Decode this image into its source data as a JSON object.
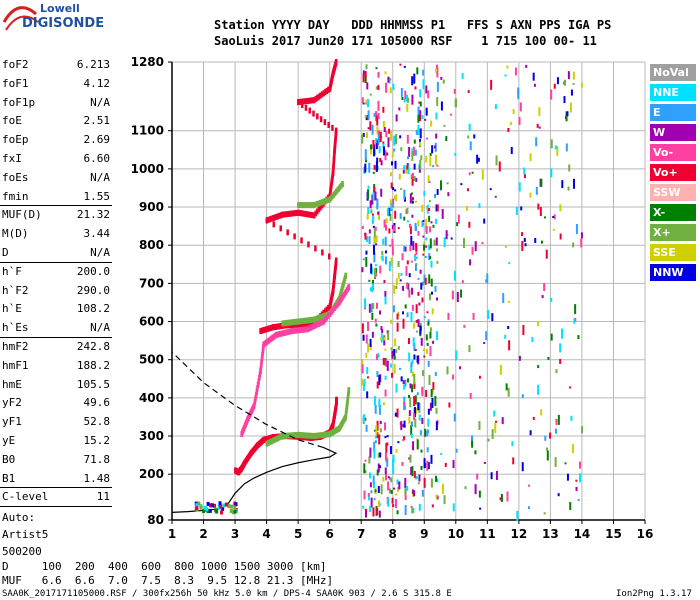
{
  "brand": {
    "line1": "Lowell",
    "line2": "DIGISONDE"
  },
  "header": {
    "row1": "Station YYYY DAY   DDD HHMMSS P1   FFS S AXN PPS IGA PS",
    "row2": "SaoLuis 2017 Jun20 171 105000 RSF    1 715 100 00- 11"
  },
  "params": [
    {
      "label": "foF2",
      "value": "6.213"
    },
    {
      "label": "foF1",
      "value": "4.12"
    },
    {
      "label": "foF1p",
      "value": "N/A"
    },
    {
      "label": "foE",
      "value": "2.51"
    },
    {
      "label": "foEp",
      "value": "2.69"
    },
    {
      "label": "fxI",
      "value": "6.60"
    },
    {
      "label": "foEs",
      "value": "N/A"
    },
    {
      "label": "fmin",
      "value": "1.55"
    },
    {
      "label": "MUF(D)",
      "value": "21.32"
    },
    {
      "label": "M(D)",
      "value": "3.44"
    },
    {
      "label": "D",
      "value": "N/A"
    },
    {
      "label": "h`F",
      "value": "200.0"
    },
    {
      "label": "h`F2",
      "value": "290.0"
    },
    {
      "label": "h`E",
      "value": "108.2"
    },
    {
      "label": "h`Es",
      "value": "N/A"
    },
    {
      "label": "hmF2",
      "value": "242.8"
    },
    {
      "label": "hmF1",
      "value": "188.2"
    },
    {
      "label": "hmE",
      "value": "105.5"
    },
    {
      "label": "yF2",
      "value": "49.6"
    },
    {
      "label": "yF1",
      "value": "52.8"
    },
    {
      "label": "yE",
      "value": "15.2"
    },
    {
      "label": "B0",
      "value": "71.8"
    },
    {
      "label": "B1",
      "value": "1.48"
    },
    {
      "label": "C-level",
      "value": "11"
    }
  ],
  "auto": {
    "line1": "Auto:",
    "line2": "Artist5",
    "line3": "500200"
  },
  "legend": [
    {
      "label": "NoVal",
      "color": "#a0a0a0"
    },
    {
      "label": "NNE",
      "color": "#00e0ff"
    },
    {
      "label": "E",
      "color": "#30a0ff"
    },
    {
      "label": "W",
      "color": "#a000b0"
    },
    {
      "label": "Vo-",
      "color": "#ff40a0"
    },
    {
      "label": "Vo+",
      "color": "#f00030"
    },
    {
      "label": "SSW",
      "color": "#ffb0b0"
    },
    {
      "label": "X-",
      "color": "#008000"
    },
    {
      "label": "X+",
      "color": "#70b040"
    },
    {
      "label": "SSE",
      "color": "#d0d000"
    },
    {
      "label": "NNW",
      "color": "#0000e0"
    }
  ],
  "chart_data": {
    "type": "scatter",
    "title": "",
    "xlabel": "",
    "ylabel": "",
    "xlim": [
      1,
      16
    ],
    "ylim": [
      80,
      1280
    ],
    "x_ticks": [
      1,
      2,
      3,
      4,
      5,
      6,
      7,
      8,
      9,
      10,
      11,
      12,
      13,
      14,
      15,
      16
    ],
    "y_ticks": [
      80,
      200,
      300,
      400,
      500,
      600,
      700,
      800,
      900,
      1000,
      1100,
      1280
    ],
    "grid": true,
    "legend_position": "right",
    "series": [
      {
        "name": "Vo+",
        "color": "#f00030",
        "points": [
          [
            3.0,
            210
          ],
          [
            3.1,
            205
          ],
          [
            3.2,
            215
          ],
          [
            3.3,
            230
          ],
          [
            3.5,
            255
          ],
          [
            3.7,
            275
          ],
          [
            3.9,
            290
          ],
          [
            4.2,
            297
          ],
          [
            4.6,
            300
          ],
          [
            5.0,
            298
          ],
          [
            5.4,
            295
          ],
          [
            5.7,
            298
          ],
          [
            6.0,
            310
          ],
          [
            6.1,
            330
          ],
          [
            6.15,
            355
          ],
          [
            6.2,
            380
          ],
          [
            6.21,
            395
          ],
          [
            3.8,
            575
          ],
          [
            4.2,
            585
          ],
          [
            4.6,
            590
          ],
          [
            5.0,
            592
          ],
          [
            5.5,
            597
          ],
          [
            6.0,
            640
          ],
          [
            6.1,
            680
          ],
          [
            6.15,
            720
          ],
          [
            6.2,
            760
          ],
          [
            4.0,
            865
          ],
          [
            4.5,
            880
          ],
          [
            5.0,
            885
          ],
          [
            5.5,
            878
          ],
          [
            6.0,
            930
          ],
          [
            6.1,
            990
          ],
          [
            6.15,
            1050
          ],
          [
            6.2,
            1100
          ],
          [
            5.0,
            1175
          ],
          [
            5.5,
            1180
          ],
          [
            6.0,
            1210
          ],
          [
            6.1,
            1250
          ],
          [
            6.2,
            1280
          ]
        ]
      },
      {
        "name": "X+",
        "color": "#70b040",
        "points": [
          [
            4.0,
            280
          ],
          [
            4.5,
            300
          ],
          [
            5.0,
            303
          ],
          [
            5.5,
            300
          ],
          [
            6.0,
            305
          ],
          [
            6.3,
            320
          ],
          [
            6.5,
            350
          ],
          [
            6.6,
            420
          ],
          [
            4.5,
            595
          ],
          [
            5.0,
            600
          ],
          [
            5.5,
            605
          ],
          [
            6.0,
            620
          ],
          [
            6.3,
            660
          ],
          [
            6.5,
            720
          ],
          [
            5.0,
            905
          ],
          [
            5.5,
            905
          ],
          [
            6.0,
            920
          ],
          [
            6.4,
            960
          ]
        ]
      },
      {
        "name": "Vo-",
        "color": "#ff40a0",
        "points": [
          [
            3.2,
            305
          ],
          [
            3.4,
            345
          ],
          [
            3.6,
            380
          ],
          [
            3.8,
            470
          ],
          [
            3.9,
            540
          ],
          [
            4.3,
            565
          ],
          [
            4.8,
            575
          ],
          [
            5.3,
            580
          ],
          [
            5.8,
            600
          ],
          [
            6.3,
            650
          ],
          [
            6.6,
            690
          ]
        ]
      },
      {
        "name": "profile",
        "color": "#000000",
        "points": [
          [
            1.0,
            100
          ],
          [
            1.5,
            102
          ],
          [
            2.0,
            105
          ],
          [
            2.4,
            108
          ],
          [
            2.6,
            112
          ],
          [
            2.8,
            125
          ],
          [
            3.0,
            150
          ],
          [
            3.3,
            175
          ],
          [
            3.6,
            190
          ],
          [
            4.0,
            205
          ],
          [
            4.5,
            220
          ],
          [
            5.0,
            230
          ],
          [
            5.5,
            238
          ],
          [
            6.0,
            245
          ],
          [
            6.2,
            255
          ],
          [
            5.8,
            270
          ],
          [
            5.0,
            290
          ],
          [
            4.0,
            330
          ],
          [
            3.0,
            380
          ],
          [
            2.0,
            440
          ],
          [
            1.0,
            520
          ]
        ]
      }
    ]
  },
  "footer": {
    "row1": "D     100  200  400  600  800 1000 1500 3000 [km]",
    "row2": "MUF   6.6  6.6  7.0  7.5  8.3  9.5 12.8 21.3 [MHz]",
    "file": "SAA0K_2017171105000.RSF / 300fx256h 50 kHz 5.0 km / DPS-4 SAA0K 903 / 2.6 S 315.8 E",
    "version": "Ion2Png 1.3.17"
  }
}
